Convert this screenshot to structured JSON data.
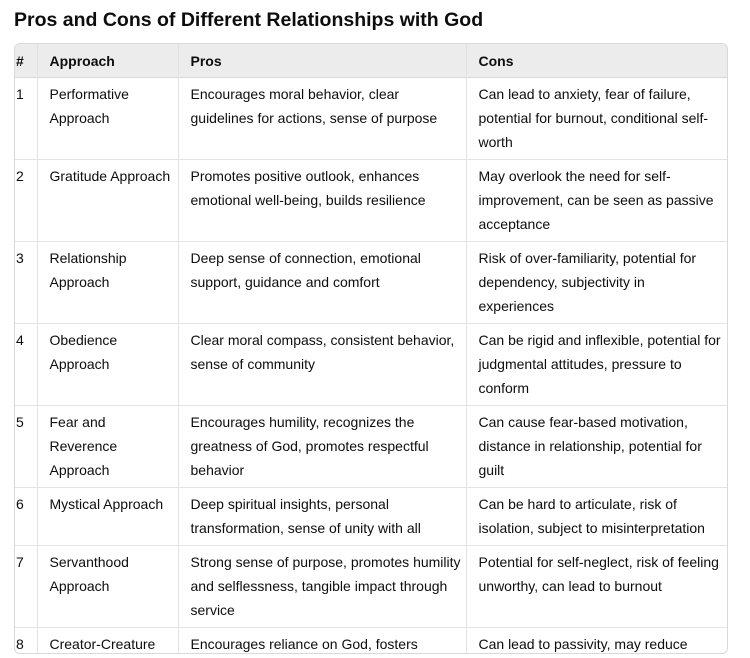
{
  "title": "Pros and Cons of Different Relationships with God",
  "table": {
    "headers": {
      "num": "#",
      "approach": "Approach",
      "pros": "Pros",
      "cons": "Cons"
    },
    "rows": [
      {
        "num": "1",
        "approach": "Performative Approach",
        "pros": "Encourages moral behavior, clear guidelines for actions, sense of purpose",
        "cons": "Can lead to anxiety, fear of failure, potential for burnout, conditional self-worth"
      },
      {
        "num": "2",
        "approach": "Gratitude Approach",
        "pros": "Promotes positive outlook, enhances emotional well-being, builds resilience",
        "cons": "May overlook the need for self-improvement, can be seen as passive acceptance"
      },
      {
        "num": "3",
        "approach": "Relationship Approach",
        "pros": "Deep sense of connection, emotional support, guidance and comfort",
        "cons": "Risk of over-familiarity, potential for dependency, subjectivity in experiences"
      },
      {
        "num": "4",
        "approach": "Obedience Approach",
        "pros": "Clear moral compass, consistent behavior, sense of community",
        "cons": "Can be rigid and inflexible, potential for judgmental attitudes, pressure to conform"
      },
      {
        "num": "5",
        "approach": "Fear and Reverence Approach",
        "pros": "Encourages humility, recognizes the greatness of God, promotes respectful behavior",
        "cons": "Can cause fear-based motivation, distance in relationship, potential for guilt"
      },
      {
        "num": "6",
        "approach": "Mystical Approach",
        "pros": "Deep spiritual insights, personal transformation, sense of unity with all",
        "cons": "Can be hard to articulate, risk of isolation, subject to misinterpretation"
      },
      {
        "num": "7",
        "approach": "Servanthood Approach",
        "pros": "Strong sense of purpose, promotes humility and selflessness, tangible impact through service",
        "cons": "Potential for self-neglect, risk of feeling unworthy, can lead to burnout"
      },
      {
        "num": "8",
        "approach": "Creator-Creature Approach",
        "pros": "Encourages reliance on God, fosters gratitude, recognizes the larger picture",
        "cons": "Can lead to passivity, may reduce personal agency, potential for fatalism"
      }
    ]
  }
}
